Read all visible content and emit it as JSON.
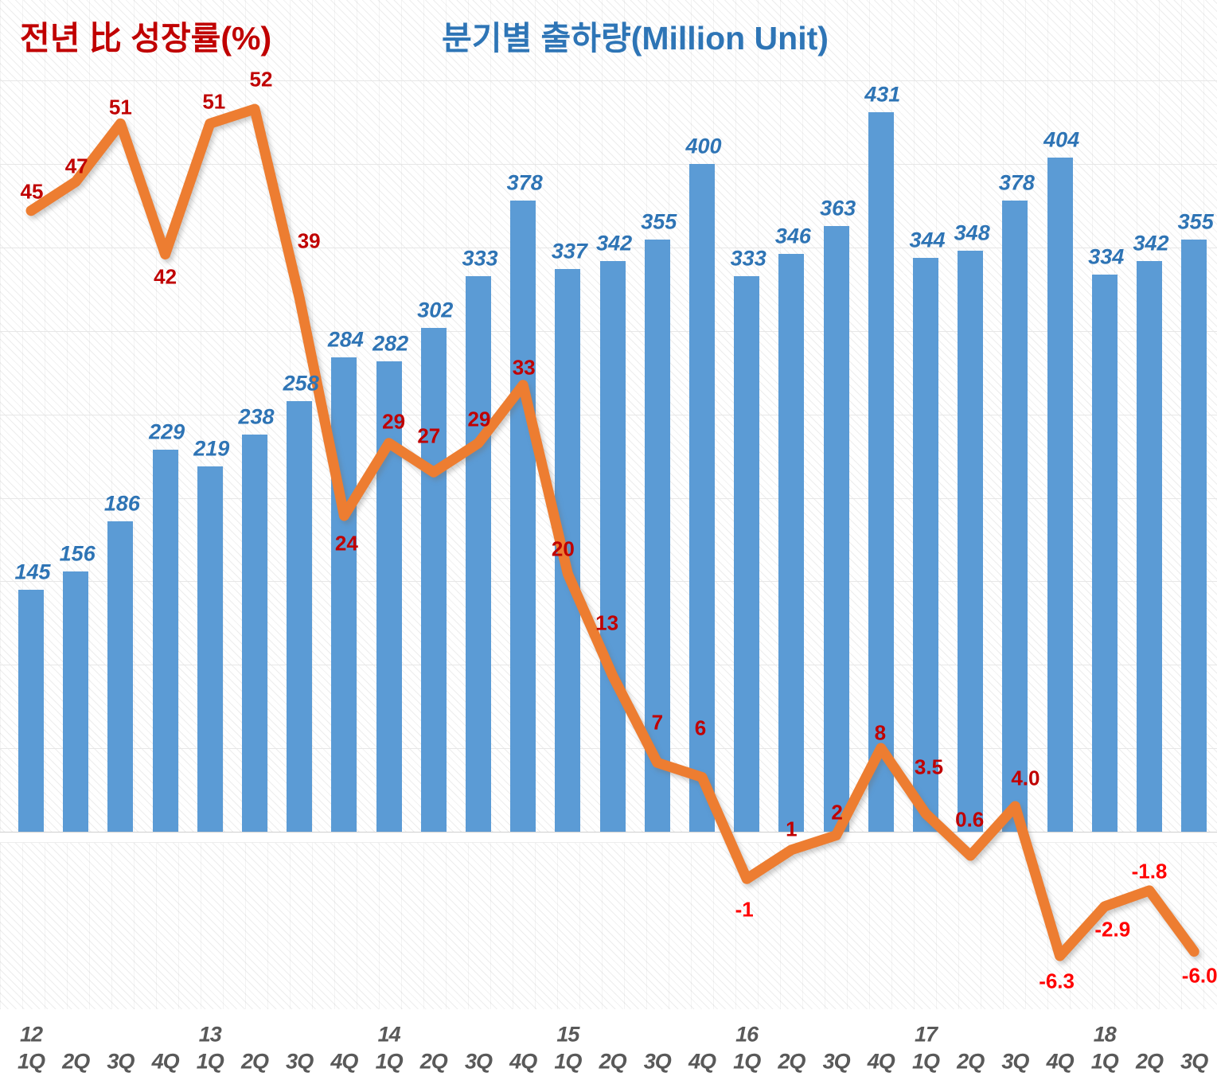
{
  "titles": {
    "growth": "전년 比 성장률(%)",
    "shipments": "분기별 출하량(Million Unit)"
  },
  "colors": {
    "bar": "#5B9BD5",
    "bar_label": "#2E74B5",
    "line": "#ED7D31",
    "growth_label_positive": "#C00000",
    "growth_label_negative": "#FF0000",
    "axis_label": "#595959",
    "title_growth": "#C00000",
    "title_shipments": "#2E75B6"
  },
  "x_axis": {
    "quarters": [
      "1Q",
      "2Q",
      "3Q",
      "4Q",
      "1Q",
      "2Q",
      "3Q",
      "4Q",
      "1Q",
      "2Q",
      "3Q",
      "4Q",
      "1Q",
      "2Q",
      "3Q",
      "4Q",
      "1Q",
      "2Q",
      "3Q",
      "4Q",
      "1Q",
      "2Q",
      "3Q",
      "4Q",
      "1Q",
      "2Q",
      "3Q"
    ],
    "years": [
      {
        "label": "12",
        "at": 0
      },
      {
        "label": "13",
        "at": 4
      },
      {
        "label": "14",
        "at": 8
      },
      {
        "label": "15",
        "at": 12
      },
      {
        "label": "16",
        "at": 16
      },
      {
        "label": "17",
        "at": 20
      },
      {
        "label": "18",
        "at": 24
      }
    ]
  },
  "chart_data": {
    "type": "bar",
    "title": "분기별 출하량(Million Unit) / 전년 比 성장률(%)",
    "categories": [
      "12 1Q",
      "12 2Q",
      "12 3Q",
      "12 4Q",
      "13 1Q",
      "13 2Q",
      "13 3Q",
      "13 4Q",
      "14 1Q",
      "14 2Q",
      "14 3Q",
      "14 4Q",
      "15 1Q",
      "15 2Q",
      "15 3Q",
      "15 4Q",
      "16 1Q",
      "16 2Q",
      "16 3Q",
      "16 4Q",
      "17 1Q",
      "17 2Q",
      "17 3Q",
      "17 4Q",
      "18 1Q",
      "18 2Q",
      "18 3Q"
    ],
    "series": [
      {
        "name": "분기별 출하량(Million Unit)",
        "type": "bar",
        "values": [
          145,
          156,
          186,
          229,
          219,
          238,
          258,
          284,
          282,
          302,
          333,
          378,
          337,
          342,
          355,
          400,
          333,
          346,
          363,
          431,
          344,
          348,
          378,
          404,
          334,
          342,
          355
        ]
      },
      {
        "name": "전년 比 성장률(%)",
        "type": "line",
        "values": [
          45,
          47,
          51,
          42,
          51,
          52,
          39,
          24,
          29,
          27,
          29,
          33,
          20,
          13,
          7,
          6,
          -1,
          1,
          2,
          8,
          3.5,
          0.6,
          4.0,
          -6.3,
          -2.9,
          -1.8,
          -6.0
        ],
        "labels": [
          "45",
          "47",
          "51",
          "42",
          "51",
          "52",
          "39",
          "24",
          "29",
          "27",
          "29",
          "33",
          "20",
          "13",
          "7",
          "6",
          "-1",
          "1",
          "2",
          "8",
          "3.5",
          "0.6",
          "4.0",
          "-6.3",
          "-2.9",
          "-1.8",
          "-6.0"
        ]
      }
    ],
    "xlabel": "",
    "ylabel": "",
    "axes_visible": false,
    "grid": "horizontal-major-faint",
    "legend_position": "titles-top"
  }
}
